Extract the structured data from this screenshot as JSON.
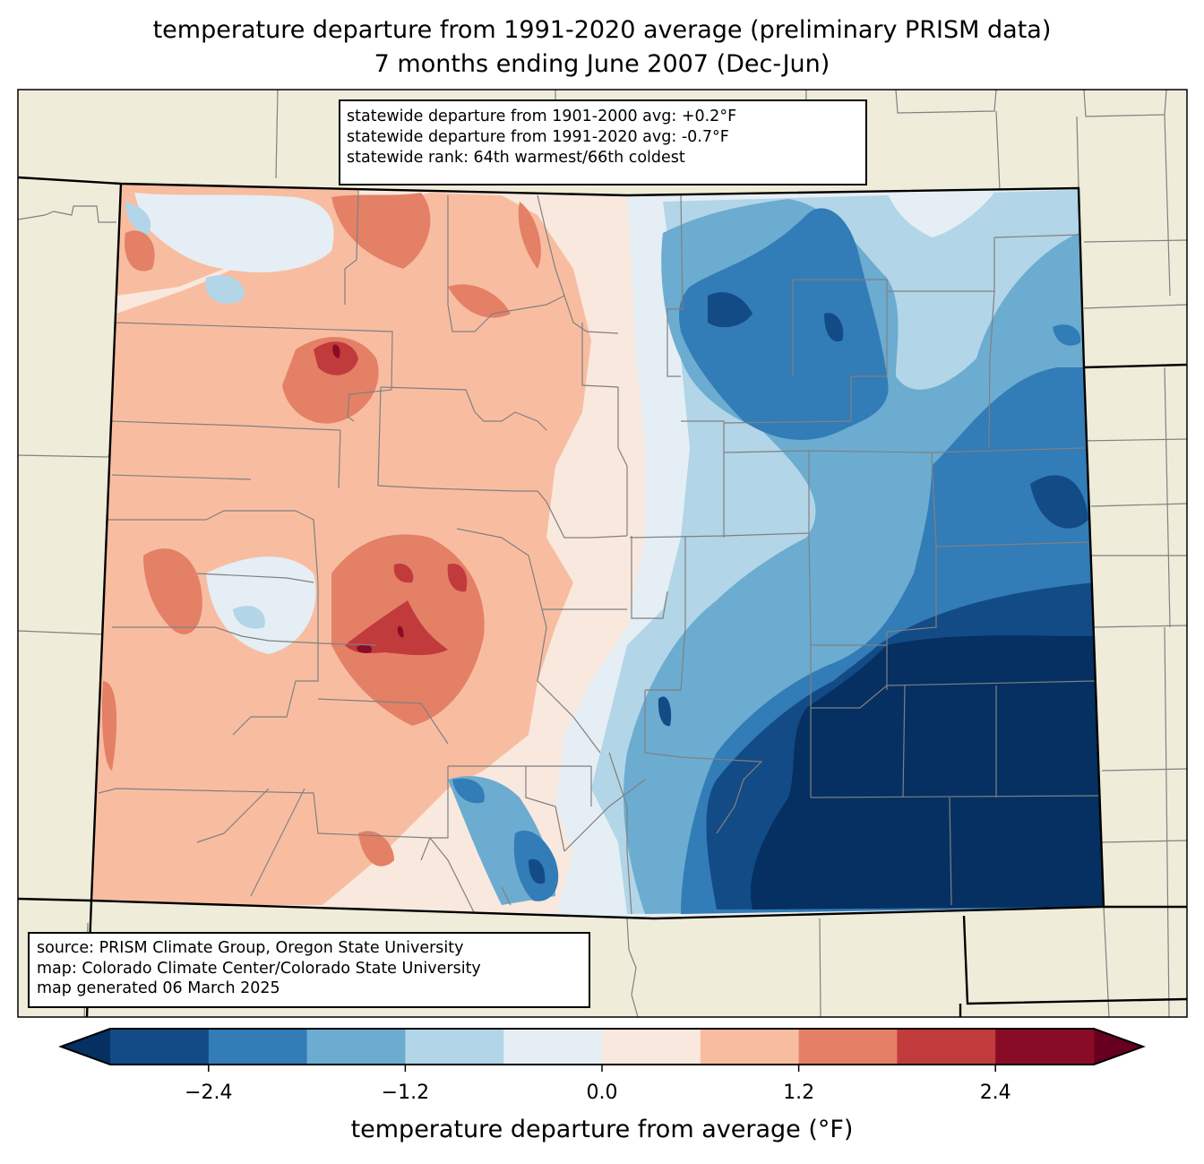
{
  "title": {
    "line1": "temperature departure from 1991-2020 average (preliminary PRISM data)",
    "line2": "7 months ending June 2007 (Dec-Jun)"
  },
  "stats_box": {
    "line1": "statewide departure from 1901-2000 avg: +0.2°F",
    "line2": "statewide departure from 1991-2020 avg: -0.7°F",
    "line3": "statewide rank: 64th warmest/66th coldest"
  },
  "source_box": {
    "line1": "source: PRISM Climate Group, Oregon State University",
    "line2": "map: Colorado Climate Center/Colorado State University",
    "line3": "map generated 06 March 2025"
  },
  "colorbar": {
    "label": "temperature departure from average (°F)",
    "bounds": [
      -3.0,
      -2.4,
      -1.8,
      -1.2,
      -0.6,
      0.0,
      0.6,
      1.2,
      1.8,
      2.4,
      3.0
    ],
    "ticks": [
      {
        "value": -2.4,
        "label": "−2.4"
      },
      {
        "value": -1.2,
        "label": "−1.2"
      },
      {
        "value": 0.0,
        "label": "0.0"
      },
      {
        "value": 1.2,
        "label": "1.2"
      },
      {
        "value": 2.4,
        "label": "2.4"
      }
    ],
    "colors": [
      "#134b87",
      "#327cb7",
      "#6bacd0",
      "#b2d5e7",
      "#e5eef4",
      "#f9e8de",
      "#f8bda1",
      "#e48066",
      "#c13b3c",
      "#890c26"
    ],
    "under_color": "#053061",
    "over_color": "#67001f"
  },
  "map_colors": {
    "land": "#efedda",
    "border_state": "#000000",
    "border_county": "#808080"
  }
}
